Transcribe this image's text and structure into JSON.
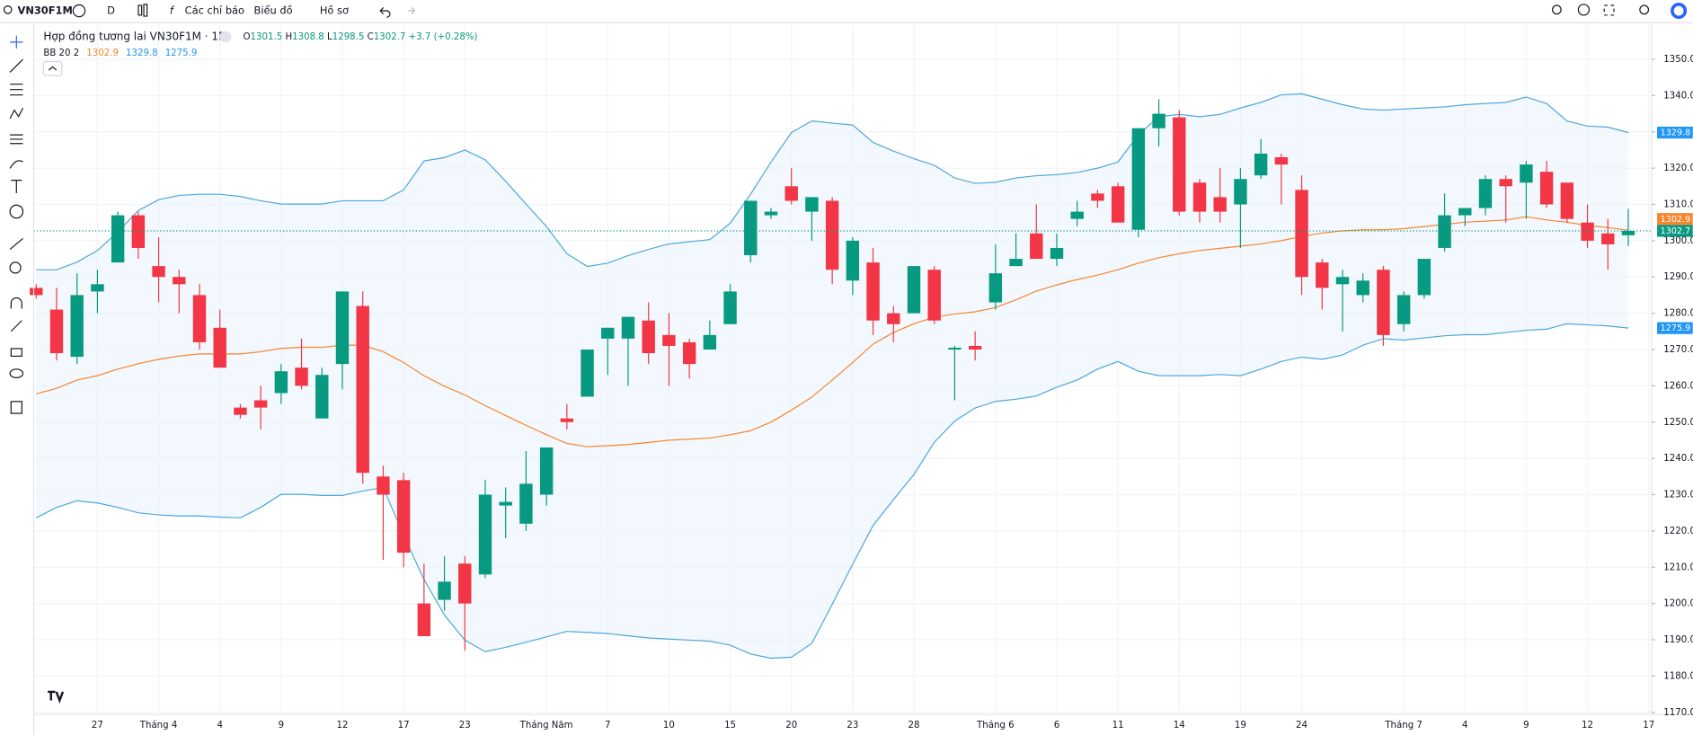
{
  "toolbar": {
    "symbol": "VN30F1M",
    "interval": "D",
    "indicators": "Các chỉ báo",
    "chart_type": "Biểu đồ",
    "profile": "Hồ sơ"
  },
  "chart_data": {
    "type": "candlestick",
    "title": "Hợp đồng tương lai VN30F1M · 1D",
    "legend_letters": [
      "O",
      "H",
      "L",
      "C"
    ],
    "change": "+3.7 (+0.28%)",
    "up_color": "#089981",
    "down_color": "#f23645",
    "categories": [
      null,
      null,
      null,
      "27",
      null,
      null,
      "Tháng 4",
      null,
      null,
      "4",
      null,
      null,
      "9",
      null,
      null,
      "12",
      null,
      null,
      "17",
      null,
      null,
      "23",
      null,
      null,
      null,
      "Tháng Năm",
      null,
      null,
      "7",
      null,
      null,
      "10",
      null,
      null,
      "15",
      null,
      null,
      "20",
      null,
      null,
      "23",
      null,
      null,
      "28",
      null,
      null,
      null,
      "Tháng 6",
      null,
      null,
      "6",
      null,
      null,
      "11",
      null,
      null,
      "14",
      null,
      null,
      "19",
      null,
      null,
      "24",
      null,
      null,
      null,
      null,
      "Tháng 7",
      null,
      null,
      "4",
      null,
      null,
      "9",
      null,
      null,
      "12",
      null,
      null,
      "17"
    ],
    "open": [
      1287,
      1281,
      1268,
      1286,
      1294,
      1307,
      1293,
      1290,
      1285,
      1276,
      1254,
      1256,
      1258,
      1265,
      1251,
      1266,
      1282,
      1235,
      1234,
      1200,
      1201,
      1211,
      1208,
      1227,
      1222,
      1230,
      1251,
      1257,
      1273,
      1273,
      1278,
      1274,
      1272,
      1270,
      1277,
      1296,
      1307,
      1315,
      1308,
      1311,
      1289,
      1294,
      1280,
      1280,
      1292,
      1270,
      1271,
      1283,
      1293,
      1302,
      1295,
      1306,
      1313,
      1315,
      1303,
      1331,
      1334,
      1316,
      1312,
      1310,
      1318,
      1323,
      1314,
      1294,
      1288,
      1285,
      1292,
      1277,
      1285,
      1298,
      1307,
      1309,
      1317,
      1316,
      1319,
      1316,
      1305,
      1302,
      1301.5,
      null
    ],
    "high": [
      1288,
      1287,
      1291,
      1292,
      1308,
      1308,
      1301,
      1292,
      1288,
      1281,
      1255,
      1260,
      1266,
      1273,
      1265,
      1286,
      1286,
      1238,
      1236,
      1211,
      1213,
      1213,
      1234,
      1232,
      1242,
      1243,
      1255,
      1270,
      1276,
      1279,
      1283,
      1280,
      1273,
      1278,
      1288,
      1311,
      1309,
      1320,
      1312,
      1312,
      1301,
      1298,
      1282,
      1293,
      1293,
      1271,
      1275,
      1299,
      1302,
      1310,
      1302,
      1311,
      1314,
      1316,
      1331,
      1339,
      1336,
      1317,
      1320,
      1320,
      1328,
      1324,
      1318,
      1295,
      1292,
      1291,
      1293,
      1286,
      1295,
      1313,
      1309,
      1318,
      1318,
      1322,
      1322,
      1316,
      1310,
      1306,
      1308.8,
      null
    ],
    "low": [
      1284,
      1267,
      1266,
      1280,
      1294,
      1295,
      1283,
      1280,
      1270,
      1265,
      1251,
      1248,
      1255,
      1259,
      1251,
      1259,
      1233,
      1212,
      1210,
      1191,
      1198,
      1187,
      1207,
      1218,
      1220,
      1227,
      1248,
      1257,
      1263,
      1260,
      1266,
      1260,
      1262,
      1270,
      1277,
      1294,
      1306,
      1310,
      1300,
      1288,
      1285,
      1274,
      1272,
      1280,
      1277,
      1256,
      1267,
      1281,
      1293,
      1295,
      1293,
      1304,
      1309,
      1305,
      1301,
      1326,
      1307,
      1305,
      1305,
      1298,
      1317,
      1310,
      1285,
      1281,
      1275,
      1283,
      1271,
      1275,
      1284,
      1297,
      1304,
      1307,
      1305,
      1306,
      1309,
      1305,
      1298,
      1292,
      1298.5,
      null
    ],
    "close": [
      1285,
      1269,
      1285,
      1288,
      1307,
      1298,
      1290,
      1288,
      1272,
      1265,
      1252,
      1254,
      1264,
      1260,
      1263,
      1286,
      1236,
      1230,
      1214,
      1191,
      1206,
      1200,
      1230,
      1228,
      1233,
      1243,
      1250,
      1270,
      1276,
      1279,
      1269,
      1271,
      1266,
      1274,
      1286,
      1311,
      1308,
      1311,
      1312,
      1292,
      1300,
      1278,
      1277,
      1293,
      1278,
      1270.5,
      1270,
      1291,
      1295,
      1295,
      1298,
      1308,
      1311,
      1305,
      1331,
      1335,
      1308,
      1308,
      1308,
      1317,
      1324,
      1321,
      1290,
      1287,
      1290,
      1289,
      1274,
      1285,
      1295,
      1307,
      1309,
      1317,
      1315,
      1321,
      1310,
      1306,
      1300,
      1299,
      1302.7,
      null
    ],
    "bands": {
      "label": "BB 20 2",
      "band_color": "#4ea6dc",
      "basis_color": "#f7852c",
      "fill_color": "#e9f3fb",
      "basis": [
        1257.8,
        1259.3,
        1261.6,
        1262.8,
        1264.6,
        1266.1,
        1267.3,
        1268.2,
        1268.8,
        1268.8,
        1268.8,
        1269.4,
        1270.3,
        1270.6,
        1270.6,
        1271.2,
        1271.2,
        1269.4,
        1266.4,
        1262.8,
        1259.9,
        1257.5,
        1254.5,
        1251.8,
        1249.1,
        1246.5,
        1244.1,
        1243.2,
        1243.5,
        1243.8,
        1244.4,
        1245.0,
        1245.3,
        1245.6,
        1246.5,
        1247.6,
        1250.0,
        1253.3,
        1256.9,
        1261.6,
        1266.4,
        1271.5,
        1274.7,
        1277.1,
        1278.9,
        1279.8,
        1280.4,
        1281.6,
        1283.7,
        1286.1,
        1287.8,
        1289.3,
        1290.5,
        1292.0,
        1293.8,
        1295.3,
        1296.4,
        1297.3,
        1297.9,
        1298.5,
        1299.1,
        1300.0,
        1301.2,
        1302.1,
        1302.7,
        1303.0,
        1303.0,
        1303.3,
        1303.9,
        1304.5,
        1305.1,
        1305.4,
        1305.7,
        1306.6,
        1305.7,
        1305.1,
        1304.2,
        1303.6,
        1302.9,
        null
      ],
      "upper": [
        1292.0,
        1292.0,
        1294.1,
        1297.3,
        1302.4,
        1308.3,
        1311.3,
        1312.5,
        1312.8,
        1312.8,
        1312.2,
        1311.0,
        1310.1,
        1310.1,
        1310.1,
        1311.0,
        1311.0,
        1311.0,
        1314.0,
        1322.0,
        1322.9,
        1325.0,
        1322.3,
        1316.4,
        1310.1,
        1303.9,
        1296.4,
        1292.9,
        1293.8,
        1295.9,
        1297.6,
        1299.1,
        1299.7,
        1300.3,
        1304.8,
        1312.8,
        1321.7,
        1329.8,
        1333.0,
        1332.4,
        1331.9,
        1327.1,
        1324.7,
        1322.6,
        1320.8,
        1317.3,
        1315.8,
        1316.1,
        1317.3,
        1317.9,
        1318.2,
        1318.8,
        1320.0,
        1321.7,
        1329.2,
        1334.2,
        1334.8,
        1334.2,
        1334.8,
        1336.6,
        1338.1,
        1340.2,
        1340.5,
        1339.0,
        1337.5,
        1336.3,
        1336.0,
        1336.3,
        1336.6,
        1336.9,
        1337.5,
        1337.8,
        1338.1,
        1339.6,
        1337.8,
        1333.0,
        1331.6,
        1331.3,
        1329.8,
        null
      ],
      "lower": [
        1223.6,
        1226.5,
        1228.3,
        1227.7,
        1226.5,
        1225.0,
        1224.4,
        1224.1,
        1224.1,
        1223.8,
        1223.6,
        1226.5,
        1230.1,
        1230.1,
        1229.8,
        1229.8,
        1231.0,
        1231.9,
        1218.8,
        1206.6,
        1196.8,
        1189.9,
        1186.7,
        1187.9,
        1189.3,
        1190.8,
        1192.3,
        1192.0,
        1191.7,
        1191.1,
        1190.5,
        1190.2,
        1189.9,
        1189.6,
        1188.5,
        1186.1,
        1184.9,
        1185.2,
        1189.0,
        1199.8,
        1210.8,
        1221.5,
        1228.6,
        1235.5,
        1244.4,
        1250.3,
        1253.9,
        1255.7,
        1256.3,
        1257.2,
        1259.6,
        1261.6,
        1264.6,
        1266.7,
        1264.0,
        1262.8,
        1262.8,
        1262.8,
        1263.1,
        1262.8,
        1264.6,
        1266.7,
        1267.9,
        1267.3,
        1268.5,
        1271.2,
        1273.0,
        1272.6,
        1273.2,
        1273.8,
        1274.1,
        1274.1,
        1274.7,
        1275.3,
        1275.6,
        1277.1,
        1276.8,
        1276.5,
        1275.9,
        null
      ]
    },
    "ylim": [
      1169.4,
      1359.8
    ],
    "yticks": [
      {
        "value": 1170,
        "label": "1170.0"
      },
      {
        "value": 1180,
        "label": "1180.0"
      },
      {
        "value": 1190,
        "label": "1190.0"
      },
      {
        "value": 1200,
        "label": "1200.0"
      },
      {
        "value": 1210,
        "label": "1210.0"
      },
      {
        "value": 1220,
        "label": "1220.0"
      },
      {
        "value": 1230,
        "label": "1230.0"
      },
      {
        "value": 1240,
        "label": "1240.0"
      },
      {
        "value": 1250,
        "label": "1250.0"
      },
      {
        "value": 1260,
        "label": "1260.0"
      },
      {
        "value": 1270,
        "label": "1270.0"
      },
      {
        "value": 1280,
        "label": "1280.0"
      },
      {
        "value": 1290,
        "label": "1290.0"
      },
      {
        "value": 1300,
        "label": "1300.0"
      },
      {
        "value": 1310,
        "label": "1310.0"
      },
      {
        "value": 1320,
        "label": "1320.0"
      },
      {
        "value": 1330,
        "label": "1330.0"
      },
      {
        "value": 1340,
        "label": "1340.0"
      },
      {
        "value": 1350,
        "label": "1350.0"
      }
    ],
    "grid": true
  }
}
